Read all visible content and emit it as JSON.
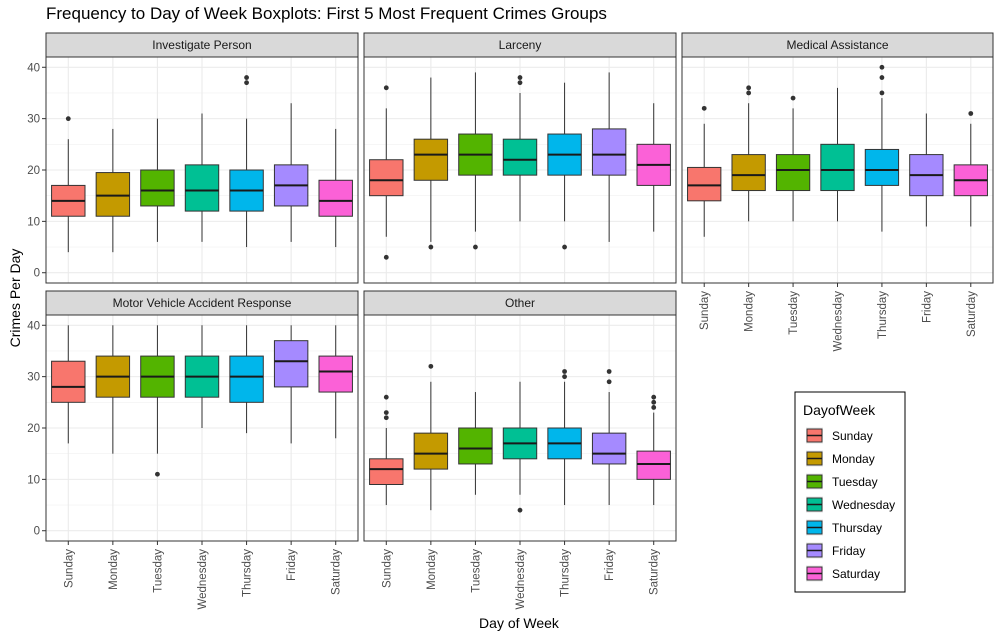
{
  "title": "Frequency to Day of Week Boxplots: First 5 Most Frequent Crimes Groups",
  "chart_data": {
    "type": "boxplot",
    "title": "Frequency to Day of Week Boxplots: First 5 Most Frequent Crimes Groups",
    "xlabel": "Day of Week",
    "ylabel": "Crimes Per Day",
    "ylim": [
      -2,
      42
    ],
    "yticks": [
      0,
      10,
      20,
      30,
      40
    ],
    "grid": true,
    "legend": {
      "title": "DayofWeek",
      "placement": "right",
      "entries": [
        "Sunday",
        "Monday",
        "Tuesday",
        "Wednesday",
        "Thursday",
        "Friday",
        "Saturday"
      ]
    },
    "categories": [
      "Sunday",
      "Monday",
      "Tuesday",
      "Wednesday",
      "Thursday",
      "Friday",
      "Saturday"
    ],
    "colors": [
      "#F8766D",
      "#C49A00",
      "#53B400",
      "#00C094",
      "#00B6EB",
      "#A58AFF",
      "#FB61D7"
    ],
    "facets": [
      {
        "name": "Investigate Person",
        "boxes": [
          {
            "min": 4,
            "q1": 11,
            "median": 14,
            "q3": 17,
            "max": 26,
            "outliers": [
              30
            ]
          },
          {
            "min": 4,
            "q1": 11,
            "median": 15,
            "q3": 19.5,
            "max": 28,
            "outliers": []
          },
          {
            "min": 6,
            "q1": 13,
            "median": 16,
            "q3": 20,
            "max": 30,
            "outliers": []
          },
          {
            "min": 6,
            "q1": 12,
            "median": 16,
            "q3": 21,
            "max": 31,
            "outliers": []
          },
          {
            "min": 5,
            "q1": 12,
            "median": 16,
            "q3": 20,
            "max": 30,
            "outliers": [
              37,
              38
            ]
          },
          {
            "min": 6,
            "q1": 13,
            "median": 17,
            "q3": 21,
            "max": 33,
            "outliers": []
          },
          {
            "min": 5,
            "q1": 11,
            "median": 14,
            "q3": 18,
            "max": 28,
            "outliers": []
          }
        ]
      },
      {
        "name": "Larceny",
        "boxes": [
          {
            "min": 7,
            "q1": 15,
            "median": 18,
            "q3": 22,
            "max": 32,
            "outliers": [
              3,
              36
            ]
          },
          {
            "min": 6,
            "q1": 18,
            "median": 23,
            "q3": 26,
            "max": 38,
            "outliers": [
              5
            ]
          },
          {
            "min": 8,
            "q1": 19,
            "median": 23,
            "q3": 27,
            "max": 39,
            "outliers": [
              5
            ]
          },
          {
            "min": 10,
            "q1": 19,
            "median": 22,
            "q3": 26,
            "max": 35,
            "outliers": [
              37,
              38
            ]
          },
          {
            "min": 10,
            "q1": 19,
            "median": 23,
            "q3": 27,
            "max": 37,
            "outliers": [
              5
            ]
          },
          {
            "min": 6,
            "q1": 19,
            "median": 23,
            "q3": 28,
            "max": 39,
            "outliers": []
          },
          {
            "min": 8,
            "q1": 17,
            "median": 21,
            "q3": 25,
            "max": 33,
            "outliers": []
          }
        ]
      },
      {
        "name": "Medical Assistance",
        "boxes": [
          {
            "min": 7,
            "q1": 14,
            "median": 17,
            "q3": 20.5,
            "max": 29,
            "outliers": [
              32
            ]
          },
          {
            "min": 10,
            "q1": 16,
            "median": 19,
            "q3": 23,
            "max": 33,
            "outliers": [
              35,
              36
            ]
          },
          {
            "min": 10,
            "q1": 16,
            "median": 20,
            "q3": 23,
            "max": 32,
            "outliers": [
              34
            ]
          },
          {
            "min": 10,
            "q1": 16,
            "median": 20,
            "q3": 25,
            "max": 36,
            "outliers": []
          },
          {
            "min": 8,
            "q1": 17,
            "median": 20,
            "q3": 24,
            "max": 34,
            "outliers": [
              35,
              38,
              40
            ]
          },
          {
            "min": 9,
            "q1": 15,
            "median": 19,
            "q3": 23,
            "max": 31,
            "outliers": []
          },
          {
            "min": 9,
            "q1": 15,
            "median": 18,
            "q3": 21,
            "max": 29,
            "outliers": [
              31
            ]
          }
        ]
      },
      {
        "name": "Motor Vehicle Accident Response",
        "boxes": [
          {
            "min": 17,
            "q1": 25,
            "median": 28,
            "q3": 33,
            "max": 40,
            "outliers": []
          },
          {
            "min": 15,
            "q1": 26,
            "median": 30,
            "q3": 34,
            "max": 40,
            "outliers": []
          },
          {
            "min": 15,
            "q1": 26,
            "median": 30,
            "q3": 34,
            "max": 40,
            "outliers": [
              11
            ]
          },
          {
            "min": 20,
            "q1": 26,
            "median": 30,
            "q3": 34,
            "max": 40,
            "outliers": []
          },
          {
            "min": 19,
            "q1": 25,
            "median": 30,
            "q3": 34,
            "max": 40,
            "outliers": []
          },
          {
            "min": 17,
            "q1": 28,
            "median": 33,
            "q3": 37,
            "max": 40,
            "outliers": []
          },
          {
            "min": 18,
            "q1": 27,
            "median": 31,
            "q3": 34,
            "max": 40,
            "outliers": []
          }
        ]
      },
      {
        "name": "Other",
        "boxes": [
          {
            "min": 5,
            "q1": 9,
            "median": 12,
            "q3": 14,
            "max": 20,
            "outliers": [
              22,
              23,
              26
            ]
          },
          {
            "min": 4,
            "q1": 12,
            "median": 15,
            "q3": 19,
            "max": 29,
            "outliers": [
              32
            ]
          },
          {
            "min": 7,
            "q1": 13,
            "median": 16,
            "q3": 20,
            "max": 27,
            "outliers": []
          },
          {
            "min": 7,
            "q1": 14,
            "median": 17,
            "q3": 20,
            "max": 29,
            "outliers": [
              4
            ]
          },
          {
            "min": 5,
            "q1": 14,
            "median": 17,
            "q3": 20,
            "max": 29,
            "outliers": [
              30,
              31
            ]
          },
          {
            "min": 5,
            "q1": 13,
            "median": 15,
            "q3": 19,
            "max": 27,
            "outliers": [
              29,
              31
            ]
          },
          {
            "min": 5,
            "q1": 10,
            "median": 13,
            "q3": 15.5,
            "max": 23,
            "outliers": [
              24,
              25,
              26
            ]
          }
        ]
      }
    ]
  }
}
